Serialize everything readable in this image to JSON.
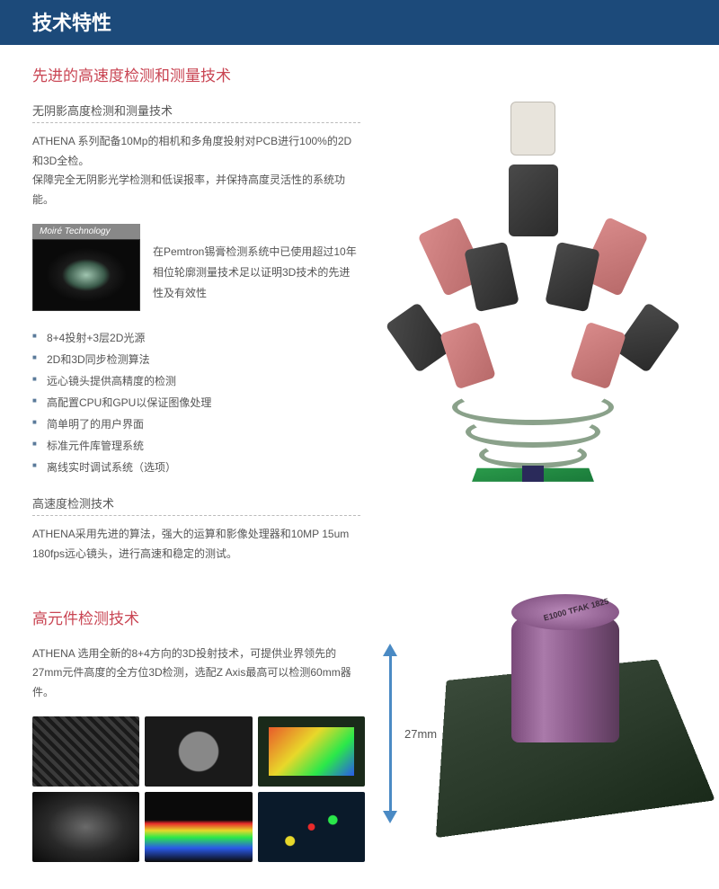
{
  "header": {
    "title": "技术特性"
  },
  "section1": {
    "title": "先进的高速度检测和测量技术",
    "sub1": "无阴影高度检测和测量技术",
    "para1": "ATHENA 系列配备10Mp的相机和多角度投射对PCB进行100%的2D和3D全检。",
    "para2": "保障完全无阴影光学检测和低误报率，并保持高度灵活性的系统功能。",
    "moire_label": "Moiré Technology",
    "moire_text": "在Pemtron锡膏检测系统中已使用超过10年相位轮廓测量技术足以证明3D技术的先进性及有效性",
    "features": [
      "8+4投射+3层2D光源",
      "2D和3D同步检测算法",
      "远心镜头提供高精度的检测",
      "高配置CPU和GPU以保证图像处理",
      "简单明了的用户界面",
      "标准元件库管理系统",
      "离线实时调试系统（选项）"
    ],
    "sub2": "高速度检测技术",
    "para3": "ATHENA采用先进的算法，强大的运算和影像处理器和10MP 15um 180fps远心镜头，进行高速和稳定的测试。"
  },
  "section2": {
    "title": "高元件检测技术",
    "para": "ATHENA 选用全新的8+4方向的3D投射技术，可提供业界领先的27mm元件高度的全方位3D检测，选配Z Axis最高可以检测60mm器件。",
    "height_label": "27mm",
    "capacitor_text": "E1000\nTFAK\n1825"
  },
  "colors": {
    "banner_bg": "#1c4a7a",
    "accent_red": "#c94553",
    "bullet": "#5a7a9a",
    "arrow": "#4a8ac4"
  }
}
